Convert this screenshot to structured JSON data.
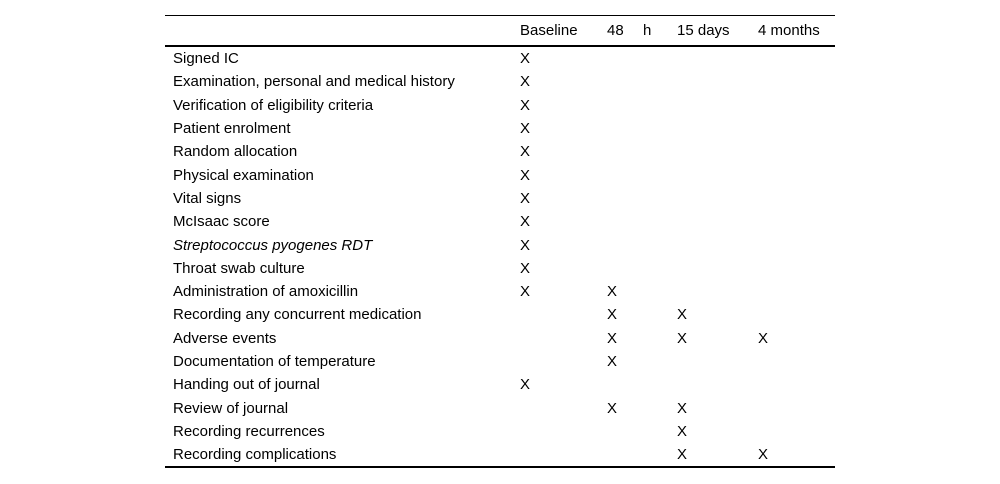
{
  "table": {
    "title": "study-visit-schedule",
    "mark_symbol": "X",
    "header": [
      "Baseline",
      "48",
      "h",
      "15 days",
      "4 months"
    ],
    "columns": [
      "Baseline",
      "48 h",
      "15 days",
      "4 months"
    ],
    "rows": [
      {
        "label": "Signed IC",
        "italic": false,
        "marks": [
          "X",
          "",
          "",
          ""
        ]
      },
      {
        "label": "Examination, personal and medical history",
        "italic": false,
        "marks": [
          "X",
          "",
          "",
          ""
        ]
      },
      {
        "label": "Verification of eligibility criteria",
        "italic": false,
        "marks": [
          "X",
          "",
          "",
          ""
        ]
      },
      {
        "label": "Patient enrolment",
        "italic": false,
        "marks": [
          "X",
          "",
          "",
          ""
        ]
      },
      {
        "label": "Random allocation",
        "italic": false,
        "marks": [
          "X",
          "",
          "",
          ""
        ]
      },
      {
        "label": "Physical examination",
        "italic": false,
        "marks": [
          "X",
          "",
          "",
          ""
        ]
      },
      {
        "label": "Vital signs",
        "italic": false,
        "marks": [
          "X",
          "",
          "",
          ""
        ]
      },
      {
        "label": "McIsaac score",
        "italic": false,
        "marks": [
          "X",
          "",
          "",
          ""
        ]
      },
      {
        "label": "Streptococcus pyogenes RDT",
        "italic": true,
        "marks": [
          "X",
          "",
          "",
          ""
        ]
      },
      {
        "label": "Throat swab culture",
        "italic": false,
        "marks": [
          "X",
          "",
          "",
          ""
        ]
      },
      {
        "label": "Administration of amoxicillin",
        "italic": false,
        "marks": [
          "X",
          "X",
          "",
          ""
        ]
      },
      {
        "label": "Recording any concurrent medication",
        "italic": false,
        "marks": [
          "",
          "X",
          "X",
          ""
        ]
      },
      {
        "label": "Adverse events",
        "italic": false,
        "marks": [
          "",
          "X",
          "X",
          "X"
        ]
      },
      {
        "label": "Documentation of temperature",
        "italic": false,
        "marks": [
          "",
          "X",
          "",
          ""
        ]
      },
      {
        "label": "Handing out of journal",
        "italic": false,
        "marks": [
          "X",
          "",
          "",
          ""
        ]
      },
      {
        "label": "Review of journal",
        "italic": false,
        "marks": [
          "",
          "X",
          "X",
          ""
        ]
      },
      {
        "label": "Recording recurrences",
        "italic": false,
        "marks": [
          "",
          "",
          "X",
          ""
        ]
      },
      {
        "label": "Recording complications",
        "italic": false,
        "marks": [
          "",
          "",
          "X",
          "X"
        ]
      }
    ]
  }
}
